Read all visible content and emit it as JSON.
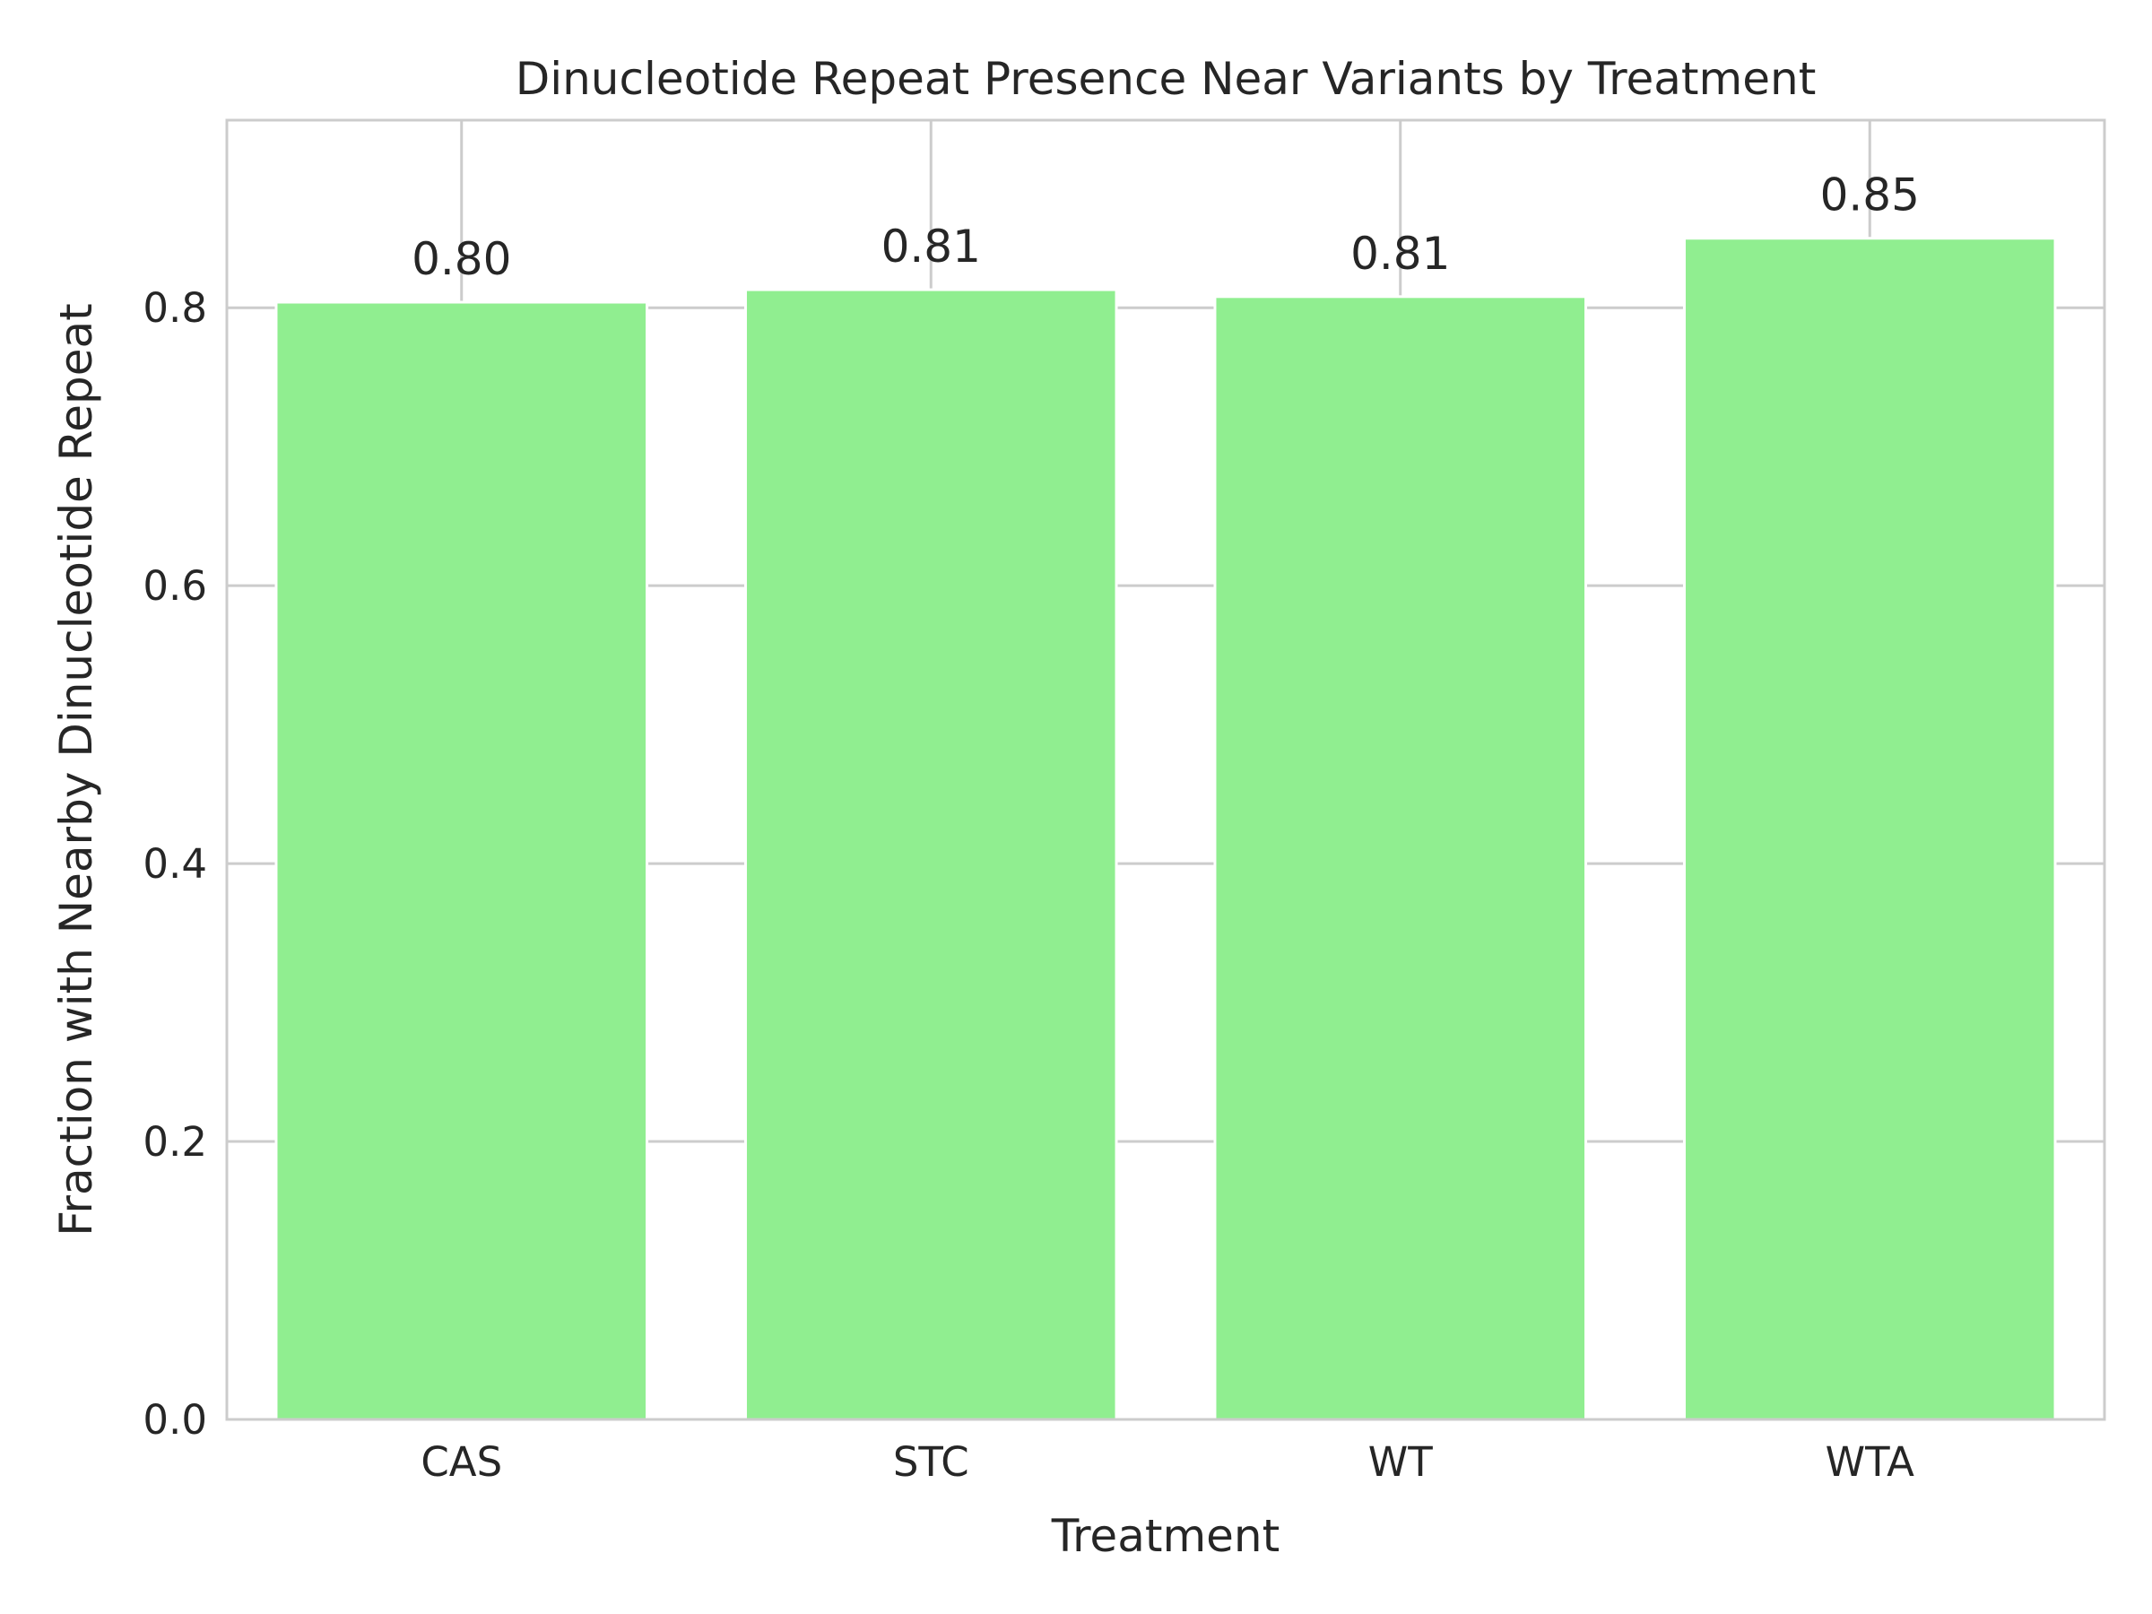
{
  "chart_data": {
    "type": "bar",
    "title": "Dinucleotide Repeat Presence Near Variants by Treatment",
    "xlabel": "Treatment",
    "ylabel": "Fraction with Nearby Dinucleotide Repeat",
    "categories": [
      "CAS",
      "STC",
      "WT",
      "WTA"
    ],
    "values": [
      0.804,
      0.813,
      0.808,
      0.85
    ],
    "data_labels": [
      "0.80",
      "0.81",
      "0.81",
      "0.85"
    ],
    "ylim": [
      0,
      0.935
    ],
    "yticks": [
      0.0,
      0.2,
      0.4,
      0.6,
      0.8
    ],
    "ytick_labels": [
      "0.0",
      "0.2",
      "0.4",
      "0.6",
      "0.8"
    ],
    "grid": true,
    "legend": "none",
    "bar_color": "#90ee90",
    "grid_color": "#cccccc",
    "text_color": "#262626"
  }
}
